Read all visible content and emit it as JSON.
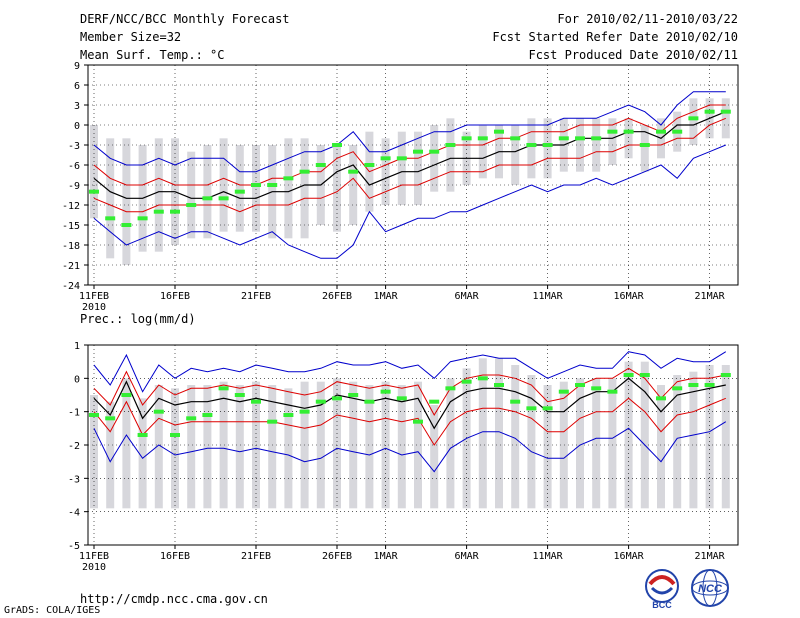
{
  "header": {
    "line1_left": "DERF/NCC/BCC Monthly Forecast",
    "line2_left": "Member Size=32",
    "line1_right": "For 2010/02/11-2010/03/22",
    "line2_right": "Fcst Started Refer Date 2010/02/10",
    "line3_right": "Fcst Produced Date 2010/02/11"
  },
  "footer": {
    "url": "http://cmdp.ncc.cma.gov.cn",
    "credit": "GrADS: COLA/IGES",
    "logo1_label": "BCC",
    "logo2_label": "NCC"
  },
  "colors": {
    "box": "#d7d7dc",
    "envelope": "#0000cc",
    "spread": "#dd0000",
    "mean": "#000000",
    "obs": "#33ee33",
    "grid": "#000000"
  },
  "chart_data": [
    {
      "type": "line",
      "title": "Mean Surf. Temp.: °C",
      "days": 40,
      "xtick_labels": [
        "11FEB",
        "16FEB",
        "21FEB",
        "26FEB",
        "1MAR",
        "6MAR",
        "11MAR",
        "16MAR",
        "21MAR"
      ],
      "xtick_days": [
        0,
        5,
        10,
        15,
        18,
        23,
        28,
        33,
        38
      ],
      "year_label": "2010",
      "ylim": [
        -24,
        9
      ],
      "yticks": [
        -24,
        -21,
        -18,
        -15,
        -12,
        -9,
        -6,
        -3,
        0,
        3,
        6,
        9
      ],
      "box_low": [
        -14,
        -20,
        -21,
        -19,
        -19,
        -18,
        -17,
        -17,
        -16,
        -16,
        -16,
        -17,
        -17,
        -17,
        -15,
        -16,
        -15,
        -13,
        -12,
        -12,
        -12,
        -10,
        -10,
        -9,
        -8,
        -8,
        -9,
        -8,
        -8,
        -7,
        -7,
        -7,
        -6,
        -5,
        -7,
        -5,
        -4,
        -3,
        -2,
        -2
      ],
      "box_high": [
        0,
        -2,
        -2,
        -3,
        -2,
        -2,
        -4,
        -3,
        -2,
        -3,
        -3,
        -3,
        -2,
        -2,
        -3,
        -3,
        -3,
        -1,
        -2,
        -1,
        -1,
        0,
        1,
        -1,
        0,
        0,
        0,
        1,
        1,
        1,
        1,
        1,
        1,
        1,
        0,
        1,
        2,
        4,
        4,
        4
      ],
      "blue_low": [
        -14,
        -16,
        -18,
        -17,
        -16,
        -17,
        -16,
        -16,
        -17,
        -18,
        -17,
        -16,
        -18,
        -19,
        -20,
        -20,
        -18,
        -13,
        -16,
        -15,
        -14,
        -14,
        -13,
        -13,
        -12,
        -11,
        -10,
        -9,
        -10,
        -9,
        -9,
        -8,
        -9,
        -8,
        -7,
        -6,
        -8,
        -5,
        -4,
        -3
      ],
      "blue_high": [
        -3,
        -5,
        -6,
        -6,
        -5,
        -6,
        -5,
        -5,
        -5,
        -7,
        -7,
        -6,
        -5,
        -4,
        -4,
        -3,
        -1,
        -4,
        -4,
        -3,
        -2,
        -1,
        -1,
        0,
        0,
        0,
        0,
        0,
        0,
        1,
        1,
        1,
        2,
        3,
        2,
        0,
        3,
        5,
        5,
        5
      ],
      "red_low": [
        -11,
        -12,
        -13,
        -13,
        -12,
        -12,
        -12,
        -12,
        -12,
        -13,
        -12,
        -12,
        -12,
        -11,
        -11,
        -10,
        -8,
        -11,
        -10,
        -9,
        -9,
        -8,
        -7,
        -7,
        -7,
        -6,
        -6,
        -6,
        -5,
        -5,
        -5,
        -4,
        -4,
        -3,
        -3,
        -3,
        -2,
        -2,
        0,
        1
      ],
      "red_high": [
        -6,
        -8,
        -9,
        -9,
        -8,
        -9,
        -9,
        -9,
        -8,
        -9,
        -9,
        -8,
        -8,
        -7,
        -7,
        -5,
        -4,
        -7,
        -6,
        -5,
        -5,
        -4,
        -3,
        -3,
        -3,
        -2,
        -2,
        -1,
        -1,
        -1,
        0,
        0,
        0,
        1,
        0,
        -1,
        1,
        2,
        3,
        3
      ],
      "mean": [
        -8,
        -10,
        -11,
        -11,
        -10,
        -10,
        -11,
        -11,
        -10,
        -11,
        -11,
        -10,
        -10,
        -9,
        -9,
        -7,
        -6,
        -9,
        -8,
        -7,
        -7,
        -6,
        -5,
        -5,
        -5,
        -4,
        -4,
        -3,
        -3,
        -3,
        -2,
        -2,
        -2,
        -1,
        -1,
        -2,
        0,
        0,
        1,
        2
      ],
      "obs": [
        -10,
        -14,
        -15,
        -14,
        -13,
        -13,
        -12,
        -11,
        -11,
        -10,
        -9,
        -9,
        -8,
        -7,
        -6,
        -3,
        -7,
        -6,
        -5,
        -5,
        -4,
        -4,
        -3,
        -2,
        -2,
        -1,
        -2,
        -3,
        -3,
        -2,
        -2,
        -2,
        -1,
        -1,
        -3,
        -1,
        -1,
        1,
        2,
        2
      ]
    },
    {
      "type": "line",
      "title": "Prec.: log(mm/d)",
      "days": 40,
      "xtick_labels": [
        "11FEB",
        "16FEB",
        "21FEB",
        "26FEB",
        "1MAR",
        "6MAR",
        "11MAR",
        "16MAR",
        "21MAR"
      ],
      "xtick_days": [
        0,
        5,
        10,
        15,
        18,
        23,
        28,
        33,
        38
      ],
      "year_label": "2010",
      "ylim": [
        -5,
        1
      ],
      "yticks": [
        -5,
        -4,
        -3,
        -2,
        -1,
        0,
        1
      ],
      "box_low": [
        -3.9,
        -3.9,
        -3.9,
        -3.9,
        -3.9,
        -3.9,
        -3.9,
        -3.9,
        -3.9,
        -3.9,
        -3.9,
        -3.9,
        -3.9,
        -3.9,
        -3.9,
        -3.9,
        -3.9,
        -3.9,
        -3.9,
        -3.9,
        -3.9,
        -3.9,
        -3.9,
        -3.9,
        -3.9,
        -3.9,
        -3.9,
        -3.9,
        -3.9,
        -3.9,
        -3.9,
        -3.9,
        -3.9,
        -3.9,
        -3.9,
        -3.9,
        -3.9,
        -3.9,
        -3.9,
        -3.9
      ],
      "box_high": [
        -0.5,
        -0.7,
        0.0,
        -0.6,
        -0.2,
        -0.3,
        -0.2,
        -0.2,
        -0.1,
        -0.2,
        -0.1,
        -0.2,
        -0.3,
        -0.1,
        -0.1,
        0.0,
        -0.1,
        -0.2,
        -0.1,
        -0.2,
        -0.1,
        -0.8,
        0.0,
        0.3,
        0.6,
        0.6,
        0.4,
        0.1,
        -0.2,
        -0.1,
        0.0,
        0.0,
        0.0,
        0.5,
        0.5,
        -0.2,
        0.1,
        0.2,
        0.4,
        0.4
      ],
      "blue_low": [
        -1.5,
        -2.5,
        -1.7,
        -2.4,
        -2.0,
        -2.3,
        -2.2,
        -2.1,
        -2.1,
        -2.2,
        -2.1,
        -2.2,
        -2.3,
        -2.5,
        -2.4,
        -2.1,
        -2.2,
        -2.3,
        -2.1,
        -2.3,
        -2.2,
        -2.8,
        -2.1,
        -1.8,
        -1.6,
        -1.6,
        -1.8,
        -2.2,
        -2.4,
        -2.4,
        -2.0,
        -1.8,
        -1.8,
        -1.5,
        -2.0,
        -2.5,
        -1.8,
        -1.7,
        -1.6,
        -1.3
      ],
      "blue_high": [
        0.4,
        -0.2,
        0.7,
        -0.4,
        0.4,
        0.0,
        0.3,
        0.2,
        0.3,
        0.2,
        0.4,
        0.3,
        0.2,
        0.2,
        0.3,
        0.5,
        0.4,
        0.4,
        0.5,
        0.3,
        0.4,
        0.0,
        0.5,
        0.6,
        0.7,
        0.6,
        0.6,
        0.3,
        0.0,
        0.2,
        0.4,
        0.3,
        0.3,
        0.8,
        0.7,
        0.3,
        0.6,
        0.5,
        0.5,
        0.8
      ],
      "red_low": [
        -1.0,
        -1.6,
        -0.7,
        -1.7,
        -1.2,
        -1.4,
        -1.3,
        -1.3,
        -1.3,
        -1.3,
        -1.3,
        -1.3,
        -1.4,
        -1.5,
        -1.4,
        -1.1,
        -1.2,
        -1.3,
        -1.2,
        -1.3,
        -1.2,
        -2.0,
        -1.3,
        -1.0,
        -0.9,
        -0.9,
        -1.0,
        -1.2,
        -1.6,
        -1.6,
        -1.2,
        -1.0,
        -1.0,
        -0.6,
        -1.0,
        -1.6,
        -1.1,
        -1.0,
        -0.8,
        -0.6
      ],
      "red_high": [
        -0.3,
        -0.8,
        0.2,
        -0.8,
        -0.2,
        -0.5,
        -0.3,
        -0.3,
        -0.2,
        -0.3,
        -0.2,
        -0.3,
        -0.4,
        -0.5,
        -0.4,
        -0.1,
        -0.2,
        -0.3,
        -0.2,
        -0.3,
        -0.2,
        -1.1,
        -0.3,
        0.0,
        0.1,
        0.1,
        0.0,
        -0.2,
        -0.7,
        -0.6,
        -0.2,
        0.0,
        0.0,
        0.3,
        0.0,
        -0.6,
        -0.1,
        0.0,
        0.0,
        0.1
      ],
      "mean": [
        -0.6,
        -1.1,
        -0.1,
        -1.2,
        -0.6,
        -0.8,
        -0.7,
        -0.7,
        -0.6,
        -0.7,
        -0.6,
        -0.7,
        -0.8,
        -0.9,
        -0.8,
        -0.5,
        -0.6,
        -0.7,
        -0.6,
        -0.7,
        -0.6,
        -1.5,
        -0.7,
        -0.4,
        -0.3,
        -0.3,
        -0.4,
        -0.6,
        -1.0,
        -1.0,
        -0.6,
        -0.4,
        -0.4,
        0.0,
        -0.4,
        -1.0,
        -0.5,
        -0.4,
        -0.3,
        -0.2
      ],
      "obs": [
        -1.1,
        -1.2,
        -0.5,
        -1.7,
        -1.0,
        -1.7,
        -1.2,
        -1.1,
        -0.3,
        -0.5,
        -0.7,
        -1.3,
        -1.1,
        -1.0,
        -0.7,
        -0.6,
        -0.5,
        -0.7,
        -0.4,
        -0.6,
        -1.3,
        -0.7,
        -0.3,
        -0.1,
        0.0,
        -0.2,
        -0.7,
        -0.9,
        -0.9,
        -0.4,
        -0.2,
        -0.3,
        -0.4,
        0.1,
        0.1,
        -0.6,
        -0.3,
        -0.2,
        -0.2,
        0.1
      ]
    }
  ]
}
